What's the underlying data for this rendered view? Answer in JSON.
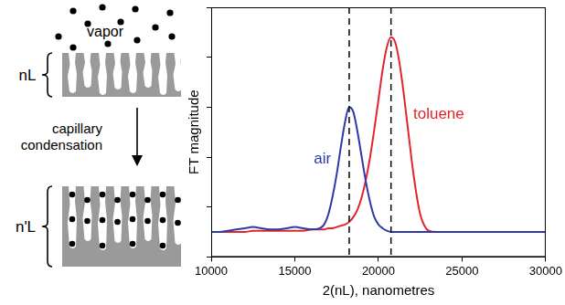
{
  "chart_data": {
    "type": "line",
    "x_label": "2(nL), nanometres",
    "y_label": "FT magnitude",
    "x": [
      10000,
      10500,
      11000,
      11500,
      12000,
      12500,
      13000,
      13500,
      14000,
      14500,
      15000,
      15500,
      16000,
      16500,
      16750,
      17000,
      17250,
      17500,
      17750,
      18000,
      18250,
      18500,
      18750,
      19000,
      19250,
      19500,
      19750,
      20000,
      20250,
      20500,
      20750,
      21000,
      21250,
      21500,
      21750,
      22000,
      22250,
      22500,
      22750,
      23000,
      23500,
      24000,
      25000,
      26000,
      27000,
      28000,
      29000,
      30000
    ],
    "series": [
      {
        "name": "air",
        "color": "#2b3aa8",
        "values": [
          10,
          10,
          10.5,
          11,
          11.5,
          12,
          11.5,
          11,
          11,
          11.5,
          12,
          11.5,
          11,
          11.5,
          13,
          17,
          24,
          33,
          44,
          54,
          60,
          58,
          50,
          40,
          30,
          22,
          16,
          13,
          11.5,
          10.5,
          10,
          10,
          10,
          10,
          10,
          10,
          10,
          10,
          10,
          10,
          10,
          10,
          10,
          10,
          10,
          10,
          10,
          10
        ]
      },
      {
        "name": "toluene",
        "color": "#e3242b",
        "values": [
          10,
          10,
          10,
          10,
          10,
          10.5,
          10.5,
          10.5,
          10.5,
          10.5,
          10.5,
          10.5,
          11,
          11,
          11,
          11.5,
          11.5,
          12,
          12.5,
          13,
          14,
          16,
          19,
          24,
          31,
          40,
          51,
          63,
          75,
          84,
          88,
          86,
          78,
          66,
          52,
          38,
          26,
          17,
          12.5,
          10.5,
          10,
          10,
          10,
          10,
          10,
          10,
          10,
          10
        ]
      }
    ],
    "xlim": [
      10000,
      30000
    ],
    "xticks": [
      10000,
      15000,
      20000,
      25000,
      30000
    ],
    "ylim": [
      0,
      100
    ],
    "yticks": [
      0,
      20,
      40,
      60,
      80,
      100
    ],
    "grid": false,
    "tick_labels": "x",
    "vlines": [
      {
        "x": 18250,
        "line_style": "dashed"
      },
      {
        "x": 20750,
        "line_style": "dashed"
      }
    ]
  },
  "diagram": {
    "vapor_label": "vapor",
    "top_layer_label": "nL",
    "process_label": "capillary condensation",
    "bottom_layer_label": "n'L"
  }
}
